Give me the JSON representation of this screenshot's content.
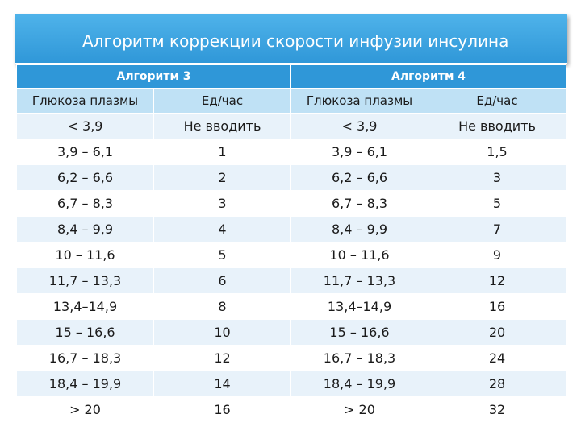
{
  "title": "Алгоритм коррекции скорости инфузии инсулина",
  "groups": [
    "Алгоритм 3",
    "Алгоритм 4"
  ],
  "columns": [
    "Глюкоза плазмы",
    "Ед/час",
    "Глюкоза плазмы",
    "Ед/час"
  ],
  "rows": [
    [
      "< 3,9",
      "Не вводить",
      "< 3,9",
      "Не вводить"
    ],
    [
      "3,9 – 6,1",
      "1",
      "3,9 – 6,1",
      "1,5"
    ],
    [
      "6,2 – 6,6",
      "2",
      "6,2 – 6,6",
      "3"
    ],
    [
      "6,7 – 8,3",
      "3",
      "6,7 – 8,3",
      "5"
    ],
    [
      "8,4 – 9,9",
      "4",
      "8,4 – 9,9",
      "7"
    ],
    [
      "10 – 11,6",
      "5",
      "10 – 11,6",
      "9"
    ],
    [
      "11,7 – 13,3",
      "6",
      "11,7 – 13,3",
      "12"
    ],
    [
      "13,4–14,9",
      "8",
      "13,4–14,9",
      "16"
    ],
    [
      "15 – 16,6",
      "10",
      "15 – 16,6",
      "20"
    ],
    [
      "16,7 – 18,3",
      "12",
      "16,7 – 18,3",
      "24"
    ],
    [
      "18,4 – 19,9",
      "14",
      "18,4 – 19,9",
      "28"
    ],
    [
      "> 20",
      "16",
      "> 20",
      "32"
    ]
  ]
}
